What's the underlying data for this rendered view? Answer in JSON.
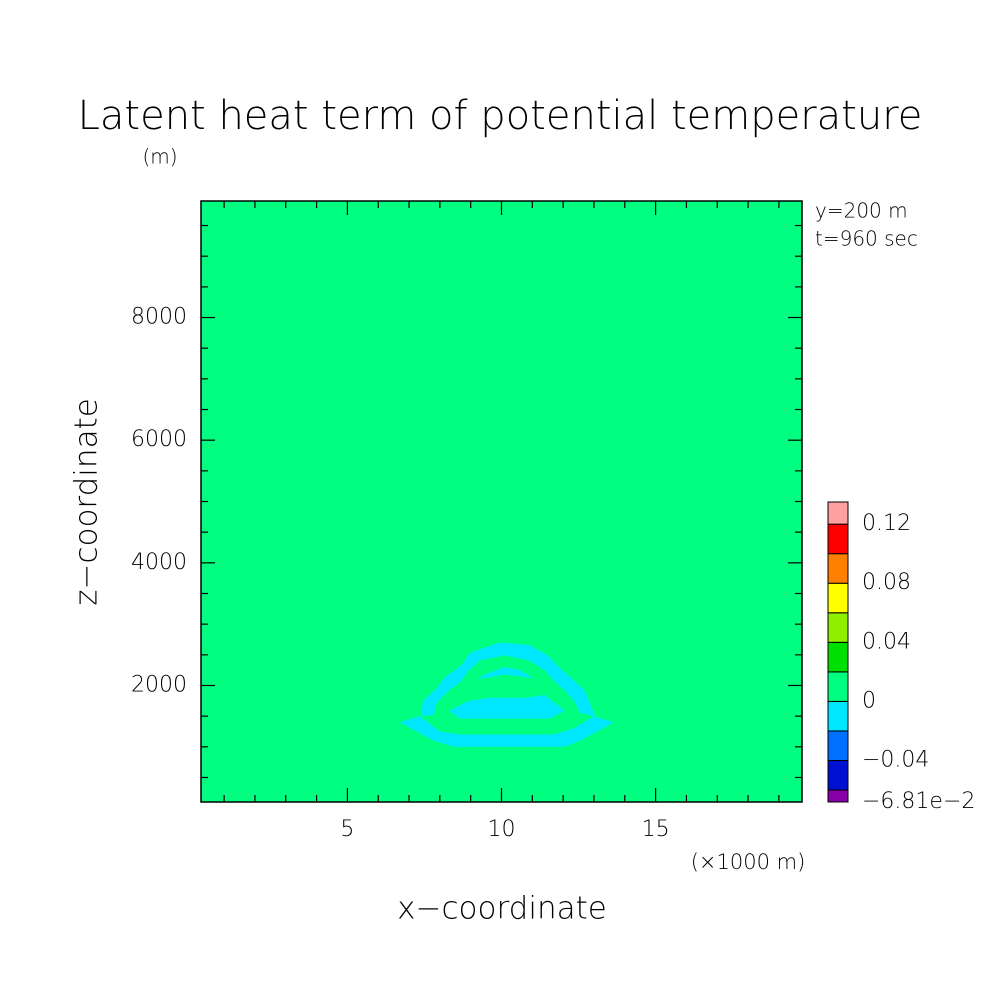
{
  "chart_data": {
    "type": "contour",
    "title": "Latent heat term of potential temperature",
    "y_unit": "(m)",
    "x_label": "x−coordinate",
    "y_label": "z−coordinate",
    "x_unit": "(×1000 m)",
    "annotations": [
      "y=200 m",
      "t=960 sec"
    ],
    "xlim": [
      0.25,
      19.75
    ],
    "ylim": [
      100,
      9900
    ],
    "xticks": [
      5,
      10,
      15
    ],
    "yticks": [
      2000,
      4000,
      6000,
      8000
    ],
    "xminorticks": [
      1,
      2,
      3,
      4,
      6,
      7,
      8,
      9,
      11,
      12,
      13,
      14,
      16,
      17,
      18,
      19
    ],
    "yminorticks": [
      500,
      1000,
      1500,
      2500,
      3000,
      3500,
      4500,
      5000,
      5500,
      6500,
      7000,
      7500,
      8500,
      9000,
      9500
    ],
    "background_color": "#00ff80",
    "regions": [
      {
        "color": "#00e8ff",
        "x": [
          6.7,
          7.35,
          8.0,
          8.65,
          11.7,
          12.35,
          13.0,
          13.65,
          12.55,
          12.05,
          8.45,
          7.8
        ],
        "y": [
          1400,
          1500,
          1250,
          1200,
          1200,
          1300,
          1500,
          1400,
          1100,
          1000,
          1000,
          1100
        ]
      },
      {
        "color": "#00e8ff",
        "x": [
          7.4,
          7.45,
          7.9,
          8.15,
          8.7,
          9.0,
          9.95,
          10.9,
          11.5,
          11.9,
          12.35,
          12.7,
          12.9,
          13.05,
          12.55,
          12.35,
          12.05,
          11.7,
          11.4,
          10.9,
          10.1,
          9.3,
          8.95,
          8.65,
          8.3,
          7.9,
          7.8
        ],
        "y": [
          1500,
          1750,
          1950,
          2130,
          2330,
          2540,
          2700,
          2660,
          2490,
          2280,
          2080,
          1920,
          1670,
          1490,
          1560,
          1750,
          1920,
          2080,
          2250,
          2410,
          2490,
          2410,
          2250,
          2050,
          1920,
          1720,
          1520
        ]
      },
      {
        "color": "#00e8ff",
        "x": [
          8.3,
          8.95,
          9.6,
          10.75,
          11.4,
          12.05,
          11.55,
          8.65
        ],
        "y": [
          1590,
          1750,
          1800,
          1800,
          1840,
          1590,
          1460,
          1460
        ]
      },
      {
        "color": "#00e8ff",
        "x": [
          9.2,
          9.6,
          10.1,
          10.6,
          11.05,
          10.6,
          10.1,
          9.6
        ],
        "y": [
          2110,
          2210,
          2300,
          2250,
          2110,
          2150,
          2180,
          2130
        ]
      }
    ],
    "colorbar": {
      "levels": [
        -0.0681,
        -0.06,
        -0.04,
        -0.02,
        0,
        0.02,
        0.04,
        0.06,
        0.08,
        0.1,
        0.12,
        0.135
      ],
      "colors": [
        "#8a00a8",
        "#0010d0",
        "#0070ff",
        "#00e8ff",
        "#00ff80",
        "#00e000",
        "#90f000",
        "#ffff00",
        "#ff8000",
        "#ff0000",
        "#ffa0a0"
      ],
      "ticks": [
        {
          "value": -0.0681,
          "label": "−6.81e−2"
        },
        {
          "value": -0.04,
          "label": "−0.04"
        },
        0,
        0.04,
        0.08,
        0.12
      ]
    }
  }
}
